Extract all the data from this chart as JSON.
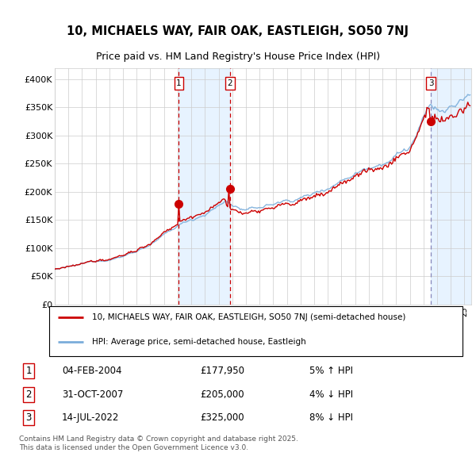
{
  "title_line1": "10, MICHAELS WAY, FAIR OAK, EASTLEIGH, SO50 7NJ",
  "title_line2": "Price paid vs. HM Land Registry's House Price Index (HPI)",
  "ylim": [
    0,
    420000
  ],
  "yticks": [
    0,
    50000,
    100000,
    150000,
    200000,
    250000,
    300000,
    350000,
    400000
  ],
  "ytick_labels": [
    "£0",
    "£50K",
    "£100K",
    "£150K",
    "£200K",
    "£250K",
    "£300K",
    "£350K",
    "£400K"
  ],
  "hpi_color": "#7aadda",
  "price_color": "#cc0000",
  "sale_color": "#cc0000",
  "vline1_x": 2004.09,
  "vline2_x": 2007.83,
  "vline3_x": 2022.54,
  "sale1_price": 177950,
  "sale2_price": 205000,
  "sale3_price": 325000,
  "shade_color": "#ddeeff",
  "grid_color": "#cccccc",
  "xmin": 1995.0,
  "xmax": 2025.5,
  "legend_line1": "10, MICHAELS WAY, FAIR OAK, EASTLEIGH, SO50 7NJ (semi-detached house)",
  "legend_line2": "HPI: Average price, semi-detached house, Eastleigh",
  "sale1_date": "04-FEB-2004",
  "sale1_pct": "5% ↑ HPI",
  "sale2_date": "31-OCT-2007",
  "sale2_pct": "4% ↓ HPI",
  "sale3_date": "14-JUL-2022",
  "sale3_pct": "8% ↓ HPI",
  "footer": "Contains HM Land Registry data © Crown copyright and database right 2025.\nThis data is licensed under the Open Government Licence v3.0."
}
